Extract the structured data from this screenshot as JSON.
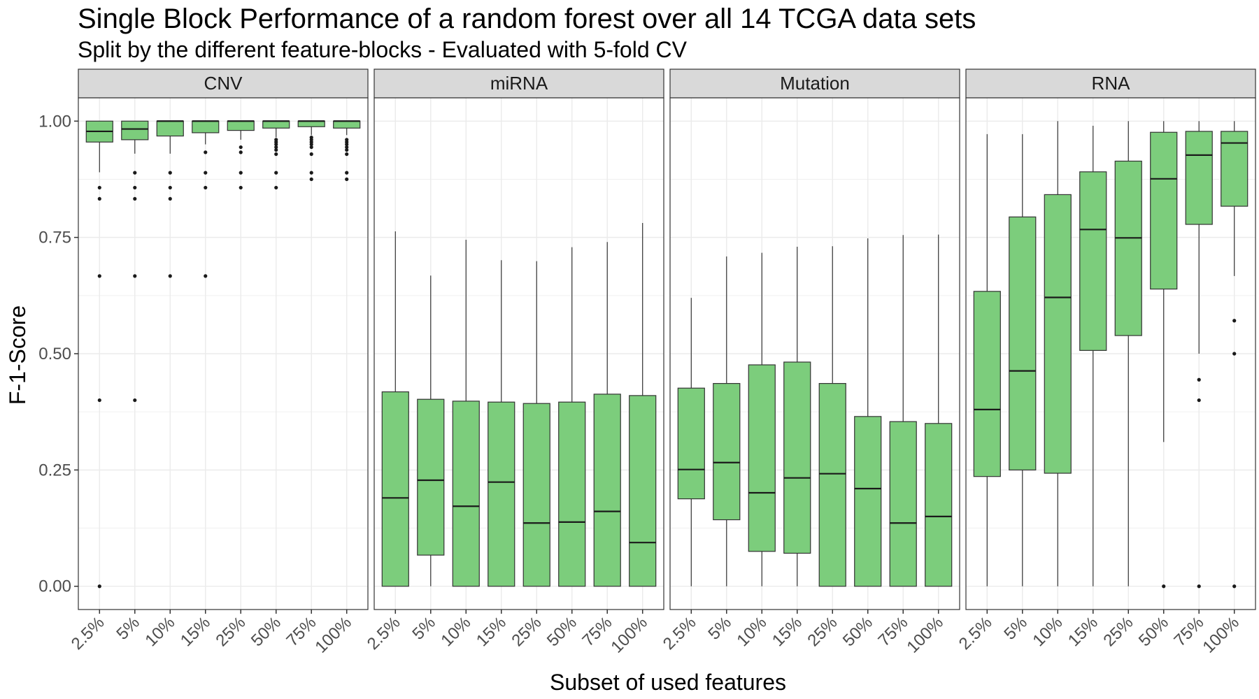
{
  "chart_data": {
    "type": "box",
    "title": "Single Block Performance of a random forest over all 14 TCGA data sets",
    "subtitle": "Split by the different feature-blocks - Evaluated with 5-fold CV",
    "xlabel": "Subset of used features",
    "ylabel": "F-1-Score",
    "ylim": [
      -0.05,
      1.05
    ],
    "yticks": [
      0,
      0.25,
      0.5,
      0.75,
      1.0
    ],
    "ytick_labels": [
      "0.00",
      "0.25",
      "0.50",
      "0.75",
      "1.00"
    ],
    "categories": [
      "2.5%",
      "5%",
      "10%",
      "15%",
      "25%",
      "50%",
      "75%",
      "100%"
    ],
    "fill_color": "#7CCD7C",
    "grid": true,
    "facets": [
      {
        "name": "CNV",
        "boxes": [
          {
            "min": 0.89,
            "q1": 0.955,
            "median": 0.978,
            "q3": 1.0,
            "max": 1.0,
            "outliers": [
              0.0,
              0.4,
              0.667,
              0.833,
              0.857
            ]
          },
          {
            "min": 0.93,
            "q1": 0.96,
            "median": 0.983,
            "q3": 1.0,
            "max": 1.0,
            "outliers": [
              0.4,
              0.667,
              0.833,
              0.857,
              0.889
            ]
          },
          {
            "min": 0.93,
            "q1": 0.968,
            "median": 1.0,
            "q3": 1.0,
            "max": 1.0,
            "outliers": [
              0.667,
              0.833,
              0.857,
              0.889
            ]
          },
          {
            "min": 0.95,
            "q1": 0.975,
            "median": 1.0,
            "q3": 1.0,
            "max": 1.0,
            "outliers": [
              0.667,
              0.857,
              0.889,
              0.933
            ]
          },
          {
            "min": 0.96,
            "q1": 0.98,
            "median": 1.0,
            "q3": 1.0,
            "max": 1.0,
            "outliers": [
              0.857,
              0.889,
              0.933,
              0.944
            ]
          },
          {
            "min": 0.965,
            "q1": 0.985,
            "median": 1.0,
            "q3": 1.0,
            "max": 1.0,
            "outliers": [
              0.857,
              0.889,
              0.929,
              0.938,
              0.944,
              0.95,
              0.955,
              0.96
            ]
          },
          {
            "min": 0.97,
            "q1": 0.988,
            "median": 1.0,
            "q3": 1.0,
            "max": 1.0,
            "outliers": [
              0.875,
              0.889,
              0.929,
              0.944,
              0.95,
              0.955,
              0.96,
              0.965
            ]
          },
          {
            "min": 0.97,
            "q1": 0.985,
            "median": 1.0,
            "q3": 1.0,
            "max": 1.0,
            "outliers": [
              0.875,
              0.889,
              0.929,
              0.938,
              0.944,
              0.95,
              0.955,
              0.96
            ]
          }
        ]
      },
      {
        "name": "miRNA",
        "boxes": [
          {
            "min": 0.0,
            "q1": 0.0,
            "median": 0.19,
            "q3": 0.418,
            "max": 0.763,
            "outliers": []
          },
          {
            "min": 0.0,
            "q1": 0.067,
            "median": 0.228,
            "q3": 0.402,
            "max": 0.668,
            "outliers": []
          },
          {
            "min": 0.0,
            "q1": 0.0,
            "median": 0.172,
            "q3": 0.398,
            "max": 0.745,
            "outliers": []
          },
          {
            "min": 0.0,
            "q1": 0.0,
            "median": 0.224,
            "q3": 0.396,
            "max": 0.701,
            "outliers": []
          },
          {
            "min": 0.0,
            "q1": 0.0,
            "median": 0.136,
            "q3": 0.393,
            "max": 0.699,
            "outliers": []
          },
          {
            "min": 0.0,
            "q1": 0.0,
            "median": 0.138,
            "q3": 0.396,
            "max": 0.729,
            "outliers": []
          },
          {
            "min": 0.0,
            "q1": 0.0,
            "median": 0.161,
            "q3": 0.413,
            "max": 0.74,
            "outliers": []
          },
          {
            "min": 0.0,
            "q1": 0.0,
            "median": 0.094,
            "q3": 0.41,
            "max": 0.781,
            "outliers": []
          }
        ]
      },
      {
        "name": "Mutation",
        "boxes": [
          {
            "min": 0.0,
            "q1": 0.188,
            "median": 0.251,
            "q3": 0.426,
            "max": 0.62,
            "outliers": []
          },
          {
            "min": 0.0,
            "q1": 0.143,
            "median": 0.266,
            "q3": 0.436,
            "max": 0.709,
            "outliers": []
          },
          {
            "min": 0.0,
            "q1": 0.075,
            "median": 0.201,
            "q3": 0.476,
            "max": 0.717,
            "outliers": []
          },
          {
            "min": 0.0,
            "q1": 0.071,
            "median": 0.233,
            "q3": 0.482,
            "max": 0.73,
            "outliers": []
          },
          {
            "min": 0.0,
            "q1": 0.0,
            "median": 0.242,
            "q3": 0.436,
            "max": 0.731,
            "outliers": []
          },
          {
            "min": 0.0,
            "q1": 0.0,
            "median": 0.21,
            "q3": 0.365,
            "max": 0.748,
            "outliers": []
          },
          {
            "min": 0.0,
            "q1": 0.0,
            "median": 0.136,
            "q3": 0.354,
            "max": 0.755,
            "outliers": []
          },
          {
            "min": 0.0,
            "q1": 0.0,
            "median": 0.15,
            "q3": 0.35,
            "max": 0.756,
            "outliers": []
          }
        ]
      },
      {
        "name": "RNA",
        "boxes": [
          {
            "min": 0.0,
            "q1": 0.236,
            "median": 0.38,
            "q3": 0.634,
            "max": 0.972,
            "outliers": []
          },
          {
            "min": 0.0,
            "q1": 0.25,
            "median": 0.463,
            "q3": 0.794,
            "max": 0.972,
            "outliers": []
          },
          {
            "min": 0.0,
            "q1": 0.243,
            "median": 0.621,
            "q3": 0.842,
            "max": 1.0,
            "outliers": []
          },
          {
            "min": 0.0,
            "q1": 0.507,
            "median": 0.767,
            "q3": 0.891,
            "max": 0.99,
            "outliers": []
          },
          {
            "min": 0.0,
            "q1": 0.539,
            "median": 0.749,
            "q3": 0.914,
            "max": 1.0,
            "outliers": []
          },
          {
            "min": 0.31,
            "q1": 0.639,
            "median": 0.876,
            "q3": 0.976,
            "max": 1.0,
            "outliers": [
              0.0
            ]
          },
          {
            "min": 0.5,
            "q1": 0.778,
            "median": 0.927,
            "q3": 0.978,
            "max": 1.0,
            "outliers": [
              0.0,
              0.4,
              0.444
            ]
          },
          {
            "min": 0.667,
            "q1": 0.817,
            "median": 0.953,
            "q3": 0.978,
            "max": 1.0,
            "outliers": [
              0.0,
              0.5,
              0.571
            ]
          }
        ]
      }
    ]
  }
}
